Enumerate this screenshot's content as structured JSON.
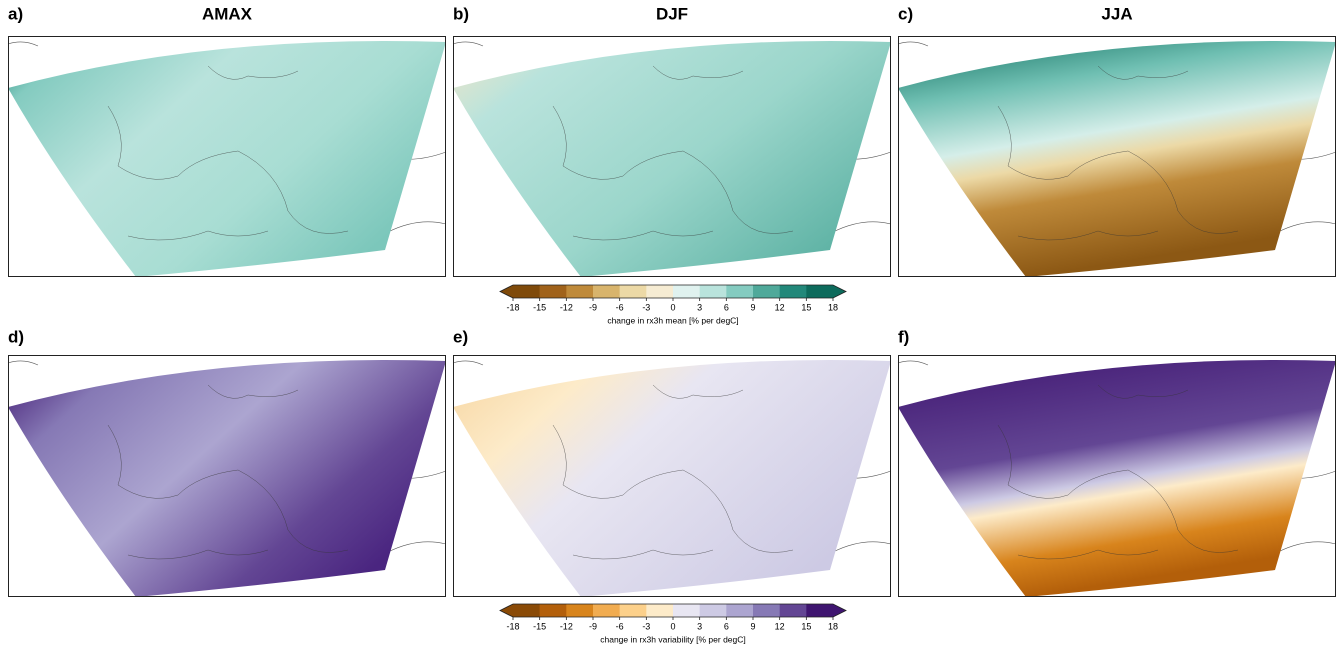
{
  "panels": [
    {
      "label": "a)",
      "title": "AMAX"
    },
    {
      "label": "b)",
      "title": "DJF"
    },
    {
      "label": "c)",
      "title": "JJA"
    },
    {
      "label": "d)"
    },
    {
      "label": "e)"
    },
    {
      "label": "f)"
    }
  ],
  "colorbars": [
    {
      "label": "change in rx3h mean [% per degC]",
      "ticks": [
        -18,
        -15,
        -12,
        -9,
        -6,
        -3,
        0,
        3,
        6,
        9,
        12,
        15,
        18
      ],
      "colors": [
        "#7f4a0a",
        "#a0621a",
        "#bf8a3a",
        "#d8b46c",
        "#ecd9a6",
        "#f6ecd3",
        "#e0f2ef",
        "#b9e3dc",
        "#84cbc0",
        "#4fa99a",
        "#22887a",
        "#0d6b5c"
      ]
    },
    {
      "label": "change in rx3h variability [% per degC]",
      "ticks": [
        -18,
        -15,
        -12,
        -9,
        -6,
        -3,
        0,
        3,
        6,
        9,
        12,
        15,
        18
      ],
      "colors": [
        "#8a4a06",
        "#b35f0a",
        "#d8841c",
        "#f1ac50",
        "#fcd08a",
        "#fdebc9",
        "#e8e6f2",
        "#cdcae4",
        "#aca5d0",
        "#8679b5",
        "#634694",
        "#3f1570"
      ]
    }
  ]
}
